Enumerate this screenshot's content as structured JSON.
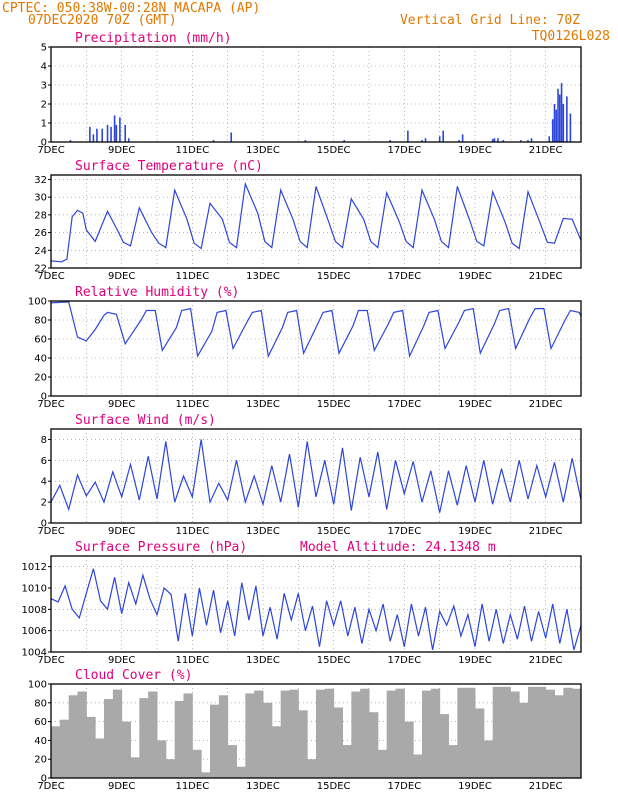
{
  "header": {
    "line1_left": "CPTEC:   050:38W-00:28N   MACAPA (AP)",
    "line2_left": "07DEC2020 70Z (GMT)",
    "line1_right": "Vertical Grid Line: 70Z",
    "line2_right": "TQ0126L028"
  },
  "colors": {
    "series": "#2d46d8",
    "header": "#e07800",
    "title": "#e0007a",
    "cloud": "#a9a9a9"
  },
  "x_axis": {
    "labels": [
      "7DEC",
      "9DEC",
      "11DEC",
      "13DEC",
      "15DEC",
      "17DEC",
      "19DEC",
      "21DEC"
    ],
    "day_range": [
      0,
      15
    ]
  },
  "chart_data": [
    {
      "type": "bar",
      "title": "Precipitation (mm/h)",
      "ylim": [
        0,
        5
      ],
      "yticks": [
        0,
        1,
        2,
        3,
        4,
        5
      ],
      "x_days": [
        0.55,
        1.1,
        1.2,
        1.3,
        1.45,
        1.6,
        1.7,
        1.8,
        1.85,
        1.95,
        2.1,
        2.2,
        4.6,
        5.1,
        7.2,
        8.3,
        9.6,
        10.1,
        10.5,
        10.6,
        11.0,
        11.1,
        11.55,
        11.65,
        12.5,
        12.55,
        12.65,
        12.8,
        13.3,
        13.5,
        13.6,
        14.1,
        14.2,
        14.25,
        14.3,
        14.35,
        14.4,
        14.45,
        14.5,
        14.6,
        14.7
      ],
      "values": [
        0.1,
        0.8,
        0.4,
        0.7,
        0.7,
        0.9,
        0.8,
        1.4,
        0.9,
        1.3,
        0.9,
        0.2,
        0.1,
        0.5,
        0.1,
        0.1,
        0.1,
        0.6,
        0.1,
        0.2,
        0.3,
        0.6,
        0.1,
        0.4,
        0.15,
        0.2,
        0.2,
        0.1,
        0.1,
        0.1,
        0.2,
        0.3,
        1.2,
        2.0,
        1.7,
        2.8,
        2.5,
        3.1,
        2.0,
        2.4,
        1.5
      ]
    },
    {
      "type": "line",
      "title": "Surface Temperature (nC)",
      "ylim": [
        22,
        32.5
      ],
      "yticks": [
        22,
        24,
        26,
        28,
        30,
        32
      ],
      "x_days": [
        0,
        0.3,
        0.45,
        0.6,
        0.75,
        0.9,
        1.0,
        1.25,
        1.6,
        1.85,
        2.05,
        2.25,
        2.5,
        2.85,
        3.05,
        3.25,
        3.5,
        3.85,
        4.05,
        4.25,
        4.5,
        4.85,
        5.05,
        5.25,
        5.5,
        5.85,
        6.05,
        6.25,
        6.5,
        6.85,
        7.05,
        7.25,
        7.5,
        7.85,
        8.05,
        8.25,
        8.5,
        8.85,
        9.05,
        9.25,
        9.5,
        9.85,
        10.05,
        10.25,
        10.5,
        10.85,
        11.05,
        11.25,
        11.5,
        11.85,
        12.05,
        12.25,
        12.5,
        12.85,
        13.05,
        13.25,
        13.5,
        13.85,
        14.05,
        14.25,
        14.5,
        14.75,
        15.0
      ],
      "values": [
        22.8,
        22.7,
        23.0,
        27.8,
        28.5,
        28.2,
        26.3,
        25.0,
        28.4,
        26.5,
        24.9,
        24.5,
        28.8,
        26.0,
        24.8,
        24.3,
        30.8,
        27.5,
        24.8,
        24.2,
        29.3,
        27.5,
        24.9,
        24.3,
        31.5,
        28.2,
        25.0,
        24.3,
        30.8,
        27.5,
        25.0,
        24.3,
        31.2,
        27.3,
        25.0,
        24.3,
        29.8,
        27.5,
        25.0,
        24.3,
        30.5,
        27.3,
        25.0,
        24.3,
        30.8,
        27.5,
        25.0,
        24.3,
        31.2,
        27.4,
        25.0,
        24.5,
        30.6,
        27.2,
        24.8,
        24.2,
        30.6,
        27.0,
        24.9,
        24.8,
        27.6,
        27.5,
        25.1
      ]
    },
    {
      "type": "line",
      "title": "Relative Humidity (%)",
      "ylim": [
        0,
        100
      ],
      "yticks": [
        0,
        20,
        40,
        60,
        80,
        100
      ],
      "x_days": [
        0,
        0.5,
        0.75,
        1.0,
        1.25,
        1.5,
        1.6,
        1.85,
        2.1,
        2.55,
        2.7,
        2.95,
        3.15,
        3.55,
        3.7,
        3.95,
        4.15,
        4.55,
        4.7,
        4.95,
        5.15,
        5.55,
        5.7,
        5.95,
        6.15,
        6.55,
        6.7,
        6.95,
        7.15,
        7.55,
        7.7,
        7.95,
        8.15,
        8.55,
        8.7,
        8.95,
        9.15,
        9.55,
        9.7,
        9.95,
        10.15,
        10.55,
        10.7,
        10.95,
        11.15,
        11.55,
        11.7,
        11.95,
        12.15,
        12.55,
        12.7,
        12.95,
        13.15,
        13.55,
        13.7,
        13.95,
        14.15,
        14.55,
        14.7,
        14.95,
        15.0
      ],
      "values": [
        98,
        99,
        62,
        58,
        70,
        85,
        88,
        86,
        55,
        80,
        90,
        90,
        48,
        72,
        90,
        92,
        42,
        68,
        88,
        90,
        50,
        78,
        88,
        90,
        42,
        72,
        88,
        90,
        45,
        76,
        88,
        90,
        45,
        74,
        90,
        90,
        48,
        76,
        88,
        90,
        42,
        74,
        88,
        90,
        50,
        78,
        90,
        92,
        45,
        76,
        90,
        92,
        50,
        82,
        92,
        92,
        50,
        80,
        90,
        88,
        84
      ]
    },
    {
      "type": "line",
      "title": "Surface Wind (m/s)",
      "ylim": [
        0,
        9
      ],
      "yticks": [
        0,
        2,
        4,
        6,
        8
      ],
      "x_days": [
        0,
        0.25,
        0.5,
        0.75,
        1.0,
        1.25,
        1.5,
        1.75,
        2.0,
        2.25,
        2.5,
        2.75,
        3.0,
        3.25,
        3.5,
        3.75,
        4.0,
        4.25,
        4.5,
        4.75,
        5.0,
        5.25,
        5.5,
        5.75,
        6.0,
        6.25,
        6.5,
        6.75,
        7.0,
        7.25,
        7.5,
        7.75,
        8.0,
        8.25,
        8.5,
        8.75,
        9.0,
        9.25,
        9.5,
        9.75,
        10.0,
        10.25,
        10.5,
        10.75,
        11.0,
        11.25,
        11.5,
        11.75,
        12.0,
        12.25,
        12.5,
        12.75,
        13.0,
        13.25,
        13.5,
        13.75,
        14.0,
        14.25,
        14.5,
        14.75,
        15.0
      ],
      "values": [
        2.0,
        3.6,
        1.3,
        4.6,
        2.6,
        3.9,
        2.0,
        4.9,
        2.5,
        5.6,
        2.2,
        6.4,
        2.3,
        7.8,
        2.0,
        4.5,
        2.5,
        8.0,
        2.0,
        3.8,
        2.2,
        6.0,
        2.0,
        4.5,
        1.8,
        5.5,
        2.0,
        6.6,
        1.5,
        7.8,
        2.5,
        6.0,
        1.8,
        7.2,
        1.2,
        6.3,
        2.5,
        6.8,
        1.3,
        6.0,
        2.8,
        5.9,
        2.0,
        5.0,
        1.0,
        5.0,
        1.7,
        5.5,
        2.0,
        6.0,
        1.8,
        5.2,
        2.0,
        6.0,
        2.3,
        5.5,
        2.5,
        5.8,
        2.0,
        6.2,
        2.2
      ]
    },
    {
      "type": "line",
      "title": "Surface Pressure (hPa)",
      "annotation": "Model Altitude: 24.1348 m",
      "ylim": [
        1004,
        1013
      ],
      "yticks": [
        1004,
        1006,
        1008,
        1010,
        1012
      ],
      "x_days": [
        0,
        0.2,
        0.4,
        0.6,
        0.8,
        1.0,
        1.2,
        1.4,
        1.6,
        1.8,
        2.0,
        2.2,
        2.4,
        2.6,
        2.8,
        3.0,
        3.2,
        3.4,
        3.6,
        3.8,
        4.0,
        4.2,
        4.4,
        4.6,
        4.8,
        5.0,
        5.2,
        5.4,
        5.6,
        5.8,
        6.0,
        6.2,
        6.4,
        6.6,
        6.8,
        7.0,
        7.2,
        7.4,
        7.6,
        7.8,
        8.0,
        8.2,
        8.4,
        8.6,
        8.8,
        9.0,
        9.2,
        9.4,
        9.6,
        9.8,
        10.0,
        10.2,
        10.4,
        10.6,
        10.8,
        11.0,
        11.2,
        11.4,
        11.6,
        11.8,
        12.0,
        12.2,
        12.4,
        12.6,
        12.8,
        13.0,
        13.2,
        13.4,
        13.6,
        13.8,
        14.0,
        14.2,
        14.4,
        14.6,
        14.8,
        15.0
      ],
      "values": [
        1009.0,
        1008.7,
        1010.2,
        1008.0,
        1007.2,
        1009.5,
        1011.8,
        1008.8,
        1008.0,
        1011.0,
        1007.6,
        1010.5,
        1008.5,
        1011.2,
        1009.0,
        1007.5,
        1010.0,
        1009.4,
        1005.0,
        1009.5,
        1005.5,
        1010.0,
        1006.5,
        1009.8,
        1005.8,
        1008.8,
        1005.5,
        1010.5,
        1007.0,
        1010.2,
        1005.5,
        1008.2,
        1005.2,
        1009.5,
        1007.0,
        1009.5,
        1006.0,
        1008.3,
        1004.5,
        1008.8,
        1006.5,
        1008.8,
        1005.5,
        1008.2,
        1004.8,
        1008.0,
        1006.0,
        1008.5,
        1005.0,
        1007.5,
        1004.5,
        1008.5,
        1005.5,
        1008.2,
        1004.2,
        1007.8,
        1006.5,
        1008.3,
        1005.5,
        1007.5,
        1004.5,
        1008.5,
        1005.0,
        1008.0,
        1004.8,
        1007.5,
        1005.2,
        1008.3,
        1005.0,
        1007.8,
        1005.3,
        1008.5,
        1004.8,
        1008.0,
        1004.2,
        1006.5
      ]
    },
    {
      "type": "bar",
      "title": "Cloud Cover (%)",
      "ylim": [
        0,
        100
      ],
      "yticks": [
        0,
        20,
        40,
        60,
        80,
        100
      ],
      "x_days": [
        0.0,
        0.25,
        0.5,
        0.75,
        1.0,
        1.25,
        1.5,
        1.75,
        2.0,
        2.25,
        2.5,
        2.75,
        3.0,
        3.25,
        3.5,
        3.75,
        4.0,
        4.25,
        4.5,
        4.75,
        5.0,
        5.25,
        5.5,
        5.75,
        6.0,
        6.25,
        6.5,
        6.75,
        7.0,
        7.25,
        7.5,
        7.75,
        8.0,
        8.25,
        8.5,
        8.75,
        9.0,
        9.25,
        9.5,
        9.75,
        10.0,
        10.25,
        10.5,
        10.75,
        11.0,
        11.25,
        11.5,
        11.75,
        12.0,
        12.25,
        12.5,
        12.75,
        13.0,
        13.25,
        13.5,
        13.75,
        14.0,
        14.25,
        14.5,
        14.75
      ],
      "values": [
        55,
        62,
        88,
        92,
        65,
        42,
        84,
        94,
        60,
        22,
        85,
        92,
        40,
        20,
        82,
        90,
        30,
        6,
        78,
        88,
        35,
        12,
        90,
        93,
        80,
        55,
        93,
        94,
        72,
        20,
        94,
        95,
        75,
        35,
        92,
        95,
        70,
        30,
        93,
        95,
        60,
        25,
        93,
        95,
        68,
        35,
        96,
        96,
        74,
        40,
        97,
        97,
        92,
        80,
        97,
        97,
        94,
        88,
        96,
        95
      ]
    }
  ]
}
